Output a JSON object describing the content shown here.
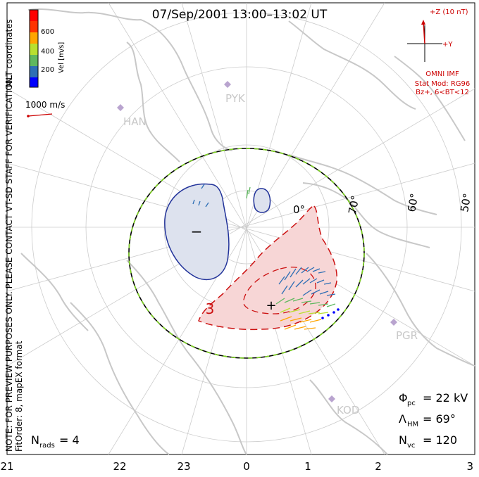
{
  "title": "07/Sep/2001  13:00–13:02  UT",
  "side_note": "NOTE: FOR PREVIEW PURPOSES ONLY. PLEASE CONTACT VT-SD STAFF FOR VERIFICATION.",
  "fit_order": "FitOrder: 8, mapEX format",
  "coords": "MLT coordinates",
  "colorbar": {
    "label": "Vel [m/s]",
    "ticks": [
      "600",
      "400",
      "200"
    ],
    "colors": [
      "#0000ff",
      "#2e6fb5",
      "#5fb85f",
      "#b8e030",
      "#ffa500",
      "#ff3300",
      "#ff0000"
    ]
  },
  "scale_vector": "1000 m/s",
  "imf": {
    "z_label": "+Z (10 nT)",
    "y_label": "+Y",
    "source": "OMNI IMF",
    "model": "Stat Mod: RG96",
    "condition": "Bz+, 6<BT<12",
    "color": "#cc0000"
  },
  "stations": [
    "PYK",
    "HAN",
    "PGR",
    "KOD"
  ],
  "lat_labels": [
    "70°",
    "60°",
    "50°"
  ],
  "partial_lat_label": "0°",
  "contour_labels": {
    "positive": "+",
    "negative": "−",
    "value": "3"
  },
  "stats": {
    "phi_symbol": "Φ",
    "phi_sub": "pc",
    "phi_value": "= 22 kV",
    "lambda_symbol": "Λ",
    "lambda_sub": "HM",
    "lambda_value": "= 69°",
    "n_symbol": "N",
    "n_sub": "vc",
    "n_value": "= 120",
    "nrads_symbol": "N",
    "nrads_sub": "rads",
    "nrads_value": "= 4"
  },
  "mlt_axis": [
    "21",
    "22",
    "23",
    "0",
    "1",
    "2",
    "3"
  ],
  "colors": {
    "map": "#c8c8c8",
    "grid": "#cccccc",
    "negative_contour": "#22339a",
    "negative_fill": "#dde2ee",
    "positive_contour": "#cc1111",
    "positive_fill": "#f7d6d6",
    "boundary_dash": "#7ed321",
    "station": "#b9a4cf"
  }
}
